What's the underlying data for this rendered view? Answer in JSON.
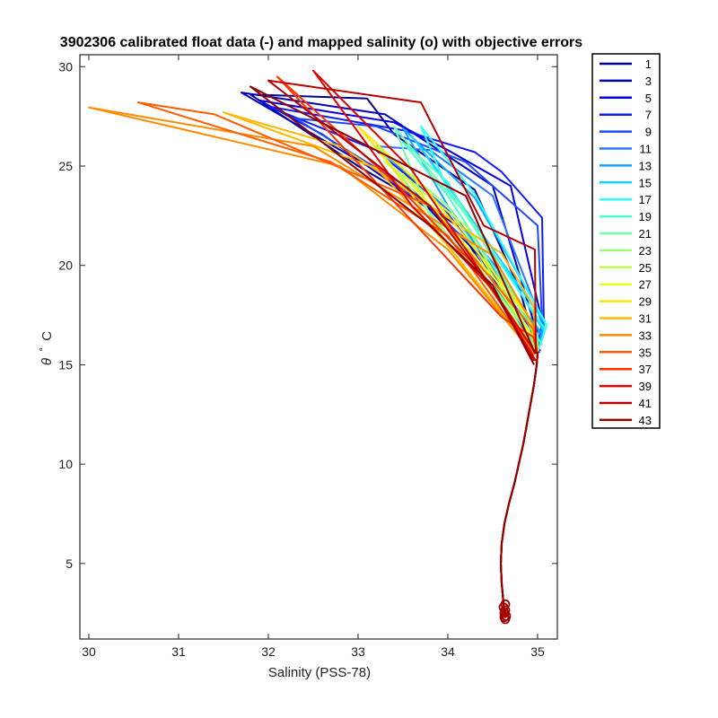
{
  "chart_data": {
    "type": "line",
    "title": "3902306 calibrated float data (-) and mapped salinity (o) with objective errors",
    "xlabel": "Salinity (PSS-78)",
    "ylabel_symbol": "θ",
    "ylabel_degree": "°",
    "ylabel_unit": "C",
    "xlim": [
      29.9,
      35.22
    ],
    "ylim": [
      1.2,
      30.6
    ],
    "xticks": [
      30,
      31,
      32,
      33,
      34,
      35
    ],
    "yticks": [
      5,
      10,
      15,
      20,
      25,
      30
    ],
    "xtick_labels": [
      "30",
      "31",
      "32",
      "33",
      "34",
      "35"
    ],
    "ytick_labels": [
      "5",
      "10",
      "15",
      "20",
      "25",
      "30"
    ],
    "grid": false,
    "legend_position": "outside-right",
    "legend": [
      "1",
      "3",
      "5",
      "7",
      "9",
      "11",
      "13",
      "15",
      "17",
      "19",
      "21",
      "23",
      "25",
      "27",
      "29",
      "31",
      "33",
      "35",
      "37",
      "39",
      "41",
      "43"
    ],
    "colors": [
      "#00008f",
      "#0000b8",
      "#0000e3",
      "#0d1cff",
      "#1c49ff",
      "#2b76ff",
      "#0aa6ff",
      "#1ad3ff",
      "#2bffff",
      "#4cffd1",
      "#73ffa6",
      "#99ff7a",
      "#c2ff4f",
      "#e5ff24",
      "#ffe600",
      "#ffb800",
      "#ff8c00",
      "#ff5e00",
      "#ff3300",
      "#e50000",
      "#b80000",
      "#8f0000"
    ],
    "deep_profile": [
      [
        34.64,
        2.3
      ],
      [
        34.62,
        3.0
      ],
      [
        34.6,
        4.0
      ],
      [
        34.59,
        5.0
      ],
      [
        34.6,
        6.0
      ],
      [
        34.63,
        7.0
      ],
      [
        34.68,
        8.0
      ],
      [
        34.74,
        9.0
      ],
      [
        34.79,
        10.0
      ],
      [
        34.84,
        11.0
      ],
      [
        34.88,
        12.0
      ],
      [
        34.92,
        13.0
      ],
      [
        34.96,
        14.0
      ],
      [
        34.99,
        15.0
      ],
      [
        35.0,
        15.6
      ]
    ],
    "markers": [
      [
        34.64,
        2.2
      ],
      [
        34.65,
        2.35
      ],
      [
        34.63,
        2.5
      ],
      [
        34.64,
        2.65
      ],
      [
        34.62,
        2.8
      ],
      [
        34.64,
        2.95
      ],
      [
        34.63,
        2.3
      ]
    ],
    "series": [
      {
        "name": "1",
        "values": [
          [
            35.02,
            15.6
          ],
          [
            34.7,
            18.0
          ],
          [
            34.35,
            20.5
          ],
          [
            33.9,
            22.6
          ],
          [
            33.0,
            25.0
          ],
          [
            31.8,
            28.6
          ],
          [
            33.1,
            28.4
          ],
          [
            33.4,
            26.6
          ],
          [
            34.3,
            23.8
          ],
          [
            34.8,
            18.8
          ],
          [
            35.0,
            15.6
          ]
        ]
      },
      {
        "name": "3",
        "values": [
          [
            35.02,
            15.6
          ],
          [
            34.6,
            18.5
          ],
          [
            34.1,
            22.0
          ],
          [
            33.3,
            24.5
          ],
          [
            31.7,
            28.7
          ],
          [
            33.3,
            27.6
          ],
          [
            34.5,
            24.0
          ],
          [
            35.0,
            16.5
          ]
        ]
      },
      {
        "name": "5",
        "values": [
          [
            35.03,
            15.7
          ],
          [
            34.5,
            19.4
          ],
          [
            33.8,
            22.8
          ],
          [
            32.6,
            26.6
          ],
          [
            31.9,
            28.3
          ],
          [
            33.4,
            27.2
          ],
          [
            34.0,
            25.8
          ],
          [
            34.7,
            24.0
          ],
          [
            35.05,
            17.2
          ]
        ]
      },
      {
        "name": "7",
        "values": [
          [
            35.05,
            16.0
          ],
          [
            34.4,
            20.2
          ],
          [
            33.9,
            23.2
          ],
          [
            33.2,
            25.8
          ],
          [
            32.0,
            28.0
          ],
          [
            33.5,
            26.8
          ],
          [
            34.3,
            25.7
          ],
          [
            34.6,
            24.7
          ],
          [
            35.05,
            22.4
          ],
          [
            35.07,
            17.0
          ]
        ]
      },
      {
        "name": "9",
        "values": [
          [
            35.05,
            16.2
          ],
          [
            34.5,
            20.0
          ],
          [
            33.6,
            23.8
          ],
          [
            32.3,
            27.4
          ],
          [
            33.2,
            27.0
          ],
          [
            34.2,
            25.2
          ],
          [
            35.0,
            22.0
          ],
          [
            35.05,
            17.2
          ]
        ]
      },
      {
        "name": "11",
        "values": [
          [
            35.05,
            16.4
          ],
          [
            34.6,
            19.6
          ],
          [
            34.0,
            22.8
          ],
          [
            33.2,
            26.0
          ],
          [
            33.8,
            25.8
          ],
          [
            34.5,
            23.5
          ],
          [
            35.06,
            17.0
          ]
        ]
      },
      {
        "name": "13",
        "values": [
          [
            35.06,
            16.5
          ],
          [
            34.6,
            19.2
          ],
          [
            34.0,
            23.0
          ],
          [
            33.5,
            26.9
          ],
          [
            34.3,
            23.4
          ],
          [
            35.08,
            17.2
          ]
        ]
      },
      {
        "name": "15",
        "values": [
          [
            35.08,
            16.6
          ],
          [
            34.6,
            20.2
          ],
          [
            34.0,
            24.0
          ],
          [
            33.6,
            26.5
          ],
          [
            33.85,
            25.0
          ],
          [
            35.1,
            17.0
          ]
        ]
      },
      {
        "name": "17",
        "values": [
          [
            35.08,
            16.8
          ],
          [
            34.6,
            20.0
          ],
          [
            34.0,
            23.8
          ],
          [
            33.7,
            27.0
          ],
          [
            34.3,
            23.6
          ],
          [
            35.1,
            17.0
          ]
        ]
      },
      {
        "name": "19",
        "values": [
          [
            35.05,
            16.0
          ],
          [
            34.5,
            20.0
          ],
          [
            34.0,
            23.5
          ],
          [
            33.5,
            26.2
          ],
          [
            34.0,
            24.2
          ],
          [
            35.0,
            16.5
          ]
        ]
      },
      {
        "name": "21",
        "values": [
          [
            35.02,
            15.8
          ],
          [
            34.5,
            19.0
          ],
          [
            33.8,
            22.5
          ],
          [
            33.4,
            27.0
          ],
          [
            34.3,
            22.0
          ],
          [
            35.0,
            16.2
          ]
        ]
      },
      {
        "name": "23",
        "values": [
          [
            35.0,
            15.8
          ],
          [
            34.3,
            19.8
          ],
          [
            33.6,
            23.8
          ],
          [
            33.2,
            26.0
          ],
          [
            34.0,
            23.0
          ],
          [
            35.0,
            16.0
          ]
        ]
      },
      {
        "name": "25",
        "values": [
          [
            35.0,
            15.6
          ],
          [
            34.3,
            20.2
          ],
          [
            33.6,
            24.2
          ],
          [
            33.3,
            25.2
          ],
          [
            34.2,
            22.0
          ],
          [
            35.0,
            16.0
          ]
        ]
      },
      {
        "name": "27",
        "values": [
          [
            35.0,
            16.0
          ],
          [
            34.3,
            20.5
          ],
          [
            33.5,
            24.6
          ],
          [
            33.8,
            23.0
          ],
          [
            34.9,
            17.4
          ]
        ]
      },
      {
        "name": "29",
        "values": [
          [
            34.98,
            15.6
          ],
          [
            34.2,
            19.8
          ],
          [
            33.4,
            24.8
          ],
          [
            33.0,
            27.0
          ],
          [
            33.8,
            23.6
          ],
          [
            34.9,
            17.5
          ]
        ]
      },
      {
        "name": "31",
        "values": [
          [
            34.97,
            15.5
          ],
          [
            34.0,
            21.0
          ],
          [
            33.2,
            24.9
          ],
          [
            31.5,
            27.7
          ],
          [
            32.8,
            26.0
          ],
          [
            34.6,
            20.6
          ],
          [
            34.95,
            18.0
          ]
        ]
      },
      {
        "name": "33",
        "values": [
          [
            34.96,
            15.5
          ],
          [
            34.0,
            20.8
          ],
          [
            32.8,
            25.0
          ],
          [
            30.0,
            27.95
          ],
          [
            32.5,
            26.0
          ],
          [
            34.5,
            20.5
          ],
          [
            34.95,
            17.0
          ]
        ]
      },
      {
        "name": "35",
        "values": [
          [
            34.96,
            15.5
          ],
          [
            34.0,
            21.5
          ],
          [
            32.7,
            25.2
          ],
          [
            30.55,
            28.2
          ],
          [
            31.4,
            27.6
          ],
          [
            33.8,
            23.0
          ],
          [
            34.95,
            16.8
          ]
        ]
      },
      {
        "name": "37",
        "values": [
          [
            34.97,
            15.6
          ],
          [
            34.3,
            20.0
          ],
          [
            33.4,
            24.2
          ],
          [
            32.1,
            29.5
          ],
          [
            34.6,
            17.4
          ],
          [
            34.95,
            16.4
          ]
        ]
      },
      {
        "name": "39",
        "values": [
          [
            34.98,
            15.2
          ],
          [
            34.5,
            18.8
          ],
          [
            33.6,
            23.0
          ],
          [
            32.5,
            29.8
          ],
          [
            33.6,
            24.8
          ],
          [
            34.98,
            15.6
          ]
        ]
      },
      {
        "name": "41",
        "values": [
          [
            34.96,
            15.2
          ],
          [
            34.5,
            18.8
          ],
          [
            33.8,
            23.0
          ],
          [
            32.0,
            29.3
          ],
          [
            33.7,
            28.2
          ],
          [
            34.4,
            22.0
          ],
          [
            34.97,
            20.8
          ],
          [
            34.98,
            15.6
          ]
        ]
      },
      {
        "name": "43",
        "values": [
          [
            34.96,
            15.0
          ],
          [
            34.5,
            19.0
          ],
          [
            33.8,
            22.0
          ],
          [
            31.8,
            29.0
          ],
          [
            34.2,
            23.5
          ],
          [
            34.97,
            15.6
          ]
        ]
      }
    ]
  }
}
